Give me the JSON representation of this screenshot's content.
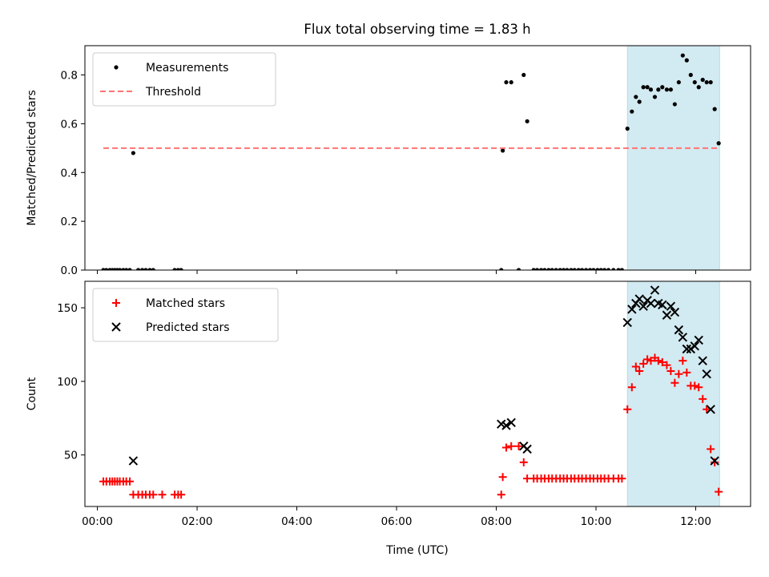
{
  "chart_data": {
    "type": "scatter",
    "title": "Flux total observing time = 1.83 h",
    "xlabel": "Time (UTC)",
    "x_unit": "hours (UTC)",
    "xlim": [
      -0.25,
      13.1
    ],
    "xticks": [
      {
        "value": 0,
        "label": "00:00"
      },
      {
        "value": 2,
        "label": "02:00"
      },
      {
        "value": 4,
        "label": "04:00"
      },
      {
        "value": 6,
        "label": "06:00"
      },
      {
        "value": 8,
        "label": "08:00"
      },
      {
        "value": 10,
        "label": "10:00"
      },
      {
        "value": 12,
        "label": "12:00"
      }
    ],
    "highlight_span": {
      "x": [
        10.63,
        12.48
      ],
      "color": "#add8e6"
    },
    "panels": [
      {
        "id": "ratio",
        "ylabel": "Matched/Predicted stars",
        "ylim": [
          0,
          0.92
        ],
        "yticks": [
          {
            "value": 0,
            "label": "0.0"
          },
          {
            "value": 0.2,
            "label": "0.2"
          },
          {
            "value": 0.4,
            "label": "0.4"
          },
          {
            "value": 0.6,
            "label": "0.6"
          },
          {
            "value": 0.8,
            "label": "0.8"
          }
        ],
        "legend": {
          "position": "upper-left"
        },
        "series": [
          {
            "name": "Measurements",
            "marker": "dot",
            "color": "#000000",
            "points": [
              [
                0.12,
                0
              ],
              [
                0.18,
                0
              ],
              [
                0.25,
                0
              ],
              [
                0.3,
                0
              ],
              [
                0.35,
                0
              ],
              [
                0.4,
                0
              ],
              [
                0.45,
                0
              ],
              [
                0.52,
                0
              ],
              [
                0.58,
                0
              ],
              [
                0.65,
                0
              ],
              [
                0.72,
                0.48
              ],
              [
                0.82,
                0
              ],
              [
                0.9,
                0
              ],
              [
                0.97,
                0
              ],
              [
                1.05,
                0
              ],
              [
                1.12,
                0
              ],
              [
                1.55,
                0
              ],
              [
                1.62,
                0
              ],
              [
                1.68,
                0
              ],
              [
                8.1,
                0
              ],
              [
                8.13,
                0.49
              ],
              [
                8.2,
                0.77
              ],
              [
                8.3,
                0.77
              ],
              [
                8.45,
                0
              ],
              [
                8.55,
                0.8
              ],
              [
                8.62,
                0.61
              ],
              [
                8.75,
                0
              ],
              [
                8.82,
                0
              ],
              [
                8.9,
                0
              ],
              [
                8.97,
                0
              ],
              [
                9.05,
                0
              ],
              [
                9.12,
                0
              ],
              [
                9.2,
                0
              ],
              [
                9.28,
                0
              ],
              [
                9.35,
                0
              ],
              [
                9.42,
                0
              ],
              [
                9.5,
                0
              ],
              [
                9.57,
                0
              ],
              [
                9.65,
                0
              ],
              [
                9.72,
                0
              ],
              [
                9.8,
                0
              ],
              [
                9.88,
                0
              ],
              [
                9.95,
                0
              ],
              [
                10.03,
                0
              ],
              [
                10.1,
                0
              ],
              [
                10.17,
                0
              ],
              [
                10.25,
                0
              ],
              [
                10.35,
                0
              ],
              [
                10.45,
                0
              ],
              [
                10.52,
                0
              ],
              [
                10.63,
                0.58
              ],
              [
                10.72,
                0.65
              ],
              [
                10.8,
                0.71
              ],
              [
                10.87,
                0.69
              ],
              [
                10.95,
                0.75
              ],
              [
                11.03,
                0.75
              ],
              [
                11.1,
                0.74
              ],
              [
                11.18,
                0.71
              ],
              [
                11.25,
                0.74
              ],
              [
                11.33,
                0.75
              ],
              [
                11.42,
                0.74
              ],
              [
                11.5,
                0.74
              ],
              [
                11.58,
                0.68
              ],
              [
                11.66,
                0.77
              ],
              [
                11.74,
                0.88
              ],
              [
                11.82,
                0.86
              ],
              [
                11.9,
                0.8
              ],
              [
                11.98,
                0.77
              ],
              [
                12.06,
                0.75
              ],
              [
                12.14,
                0.78
              ],
              [
                12.22,
                0.77
              ],
              [
                12.3,
                0.77
              ],
              [
                12.38,
                0.66
              ],
              [
                12.46,
                0.52
              ]
            ]
          },
          {
            "name": "Threshold",
            "style": "dashed-line",
            "color": "#ff7373",
            "points": [
              [
                0.12,
                0.5
              ],
              [
                12.46,
                0.5
              ]
            ]
          }
        ]
      },
      {
        "id": "count",
        "ylabel": "Count",
        "ylim": [
          15,
          168
        ],
        "yticks": [
          {
            "value": 50,
            "label": "50"
          },
          {
            "value": 100,
            "label": "100"
          },
          {
            "value": 150,
            "label": "150"
          }
        ],
        "legend": {
          "position": "upper-left"
        },
        "series": [
          {
            "name": "Matched stars",
            "marker": "plus",
            "color": "#ff0000",
            "points": [
              [
                0.12,
                32
              ],
              [
                0.18,
                32
              ],
              [
                0.25,
                32
              ],
              [
                0.3,
                32
              ],
              [
                0.35,
                32
              ],
              [
                0.4,
                32
              ],
              [
                0.45,
                32
              ],
              [
                0.52,
                32
              ],
              [
                0.58,
                32
              ],
              [
                0.65,
                32
              ],
              [
                0.72,
                23
              ],
              [
                0.82,
                23
              ],
              [
                0.9,
                23
              ],
              [
                0.97,
                23
              ],
              [
                1.05,
                23
              ],
              [
                1.12,
                23
              ],
              [
                1.3,
                23
              ],
              [
                1.55,
                23
              ],
              [
                1.62,
                23
              ],
              [
                1.68,
                23
              ],
              [
                8.1,
                23
              ],
              [
                8.13,
                35
              ],
              [
                8.2,
                55
              ],
              [
                8.3,
                56
              ],
              [
                8.45,
                56
              ],
              [
                8.55,
                45
              ],
              [
                8.62,
                34
              ],
              [
                8.75,
                34
              ],
              [
                8.82,
                34
              ],
              [
                8.9,
                34
              ],
              [
                8.97,
                34
              ],
              [
                9.05,
                34
              ],
              [
                9.12,
                34
              ],
              [
                9.2,
                34
              ],
              [
                9.28,
                34
              ],
              [
                9.35,
                34
              ],
              [
                9.42,
                34
              ],
              [
                9.5,
                34
              ],
              [
                9.57,
                34
              ],
              [
                9.65,
                34
              ],
              [
                9.72,
                34
              ],
              [
                9.8,
                34
              ],
              [
                9.88,
                34
              ],
              [
                9.95,
                34
              ],
              [
                10.03,
                34
              ],
              [
                10.1,
                34
              ],
              [
                10.17,
                34
              ],
              [
                10.25,
                34
              ],
              [
                10.35,
                34
              ],
              [
                10.45,
                34
              ],
              [
                10.52,
                34
              ],
              [
                10.63,
                81
              ],
              [
                10.72,
                96
              ],
              [
                10.8,
                110
              ],
              [
                10.87,
                107
              ],
              [
                10.95,
                112
              ],
              [
                11.03,
                115
              ],
              [
                11.1,
                114
              ],
              [
                11.18,
                116
              ],
              [
                11.25,
                114
              ],
              [
                11.33,
                113
              ],
              [
                11.42,
                111
              ],
              [
                11.5,
                107
              ],
              [
                11.58,
                99
              ],
              [
                11.66,
                105
              ],
              [
                11.74,
                114
              ],
              [
                11.82,
                106
              ],
              [
                11.9,
                97
              ],
              [
                11.98,
                97
              ],
              [
                12.06,
                96
              ],
              [
                12.14,
                88
              ],
              [
                12.22,
                81
              ],
              [
                12.3,
                54
              ],
              [
                12.38,
                45
              ],
              [
                12.46,
                25
              ]
            ]
          },
          {
            "name": "Predicted stars",
            "marker": "x",
            "color": "#000000",
            "points": [
              [
                0.72,
                46
              ],
              [
                8.1,
                71
              ],
              [
                8.2,
                70
              ],
              [
                8.3,
                72
              ],
              [
                8.55,
                56
              ],
              [
                8.62,
                54
              ],
              [
                10.63,
                140
              ],
              [
                10.72,
                149
              ],
              [
                10.8,
                153
              ],
              [
                10.87,
                156
              ],
              [
                10.95,
                151
              ],
              [
                11.03,
                155
              ],
              [
                11.1,
                153
              ],
              [
                11.18,
                162
              ],
              [
                11.25,
                153
              ],
              [
                11.33,
                152
              ],
              [
                11.42,
                145
              ],
              [
                11.5,
                151
              ],
              [
                11.58,
                147
              ],
              [
                11.66,
                135
              ],
              [
                11.74,
                130
              ],
              [
                11.82,
                122
              ],
              [
                11.9,
                122
              ],
              [
                11.98,
                124
              ],
              [
                12.06,
                128
              ],
              [
                12.14,
                114
              ],
              [
                12.22,
                105
              ],
              [
                12.3,
                81
              ],
              [
                12.38,
                46
              ]
            ]
          }
        ]
      }
    ]
  }
}
